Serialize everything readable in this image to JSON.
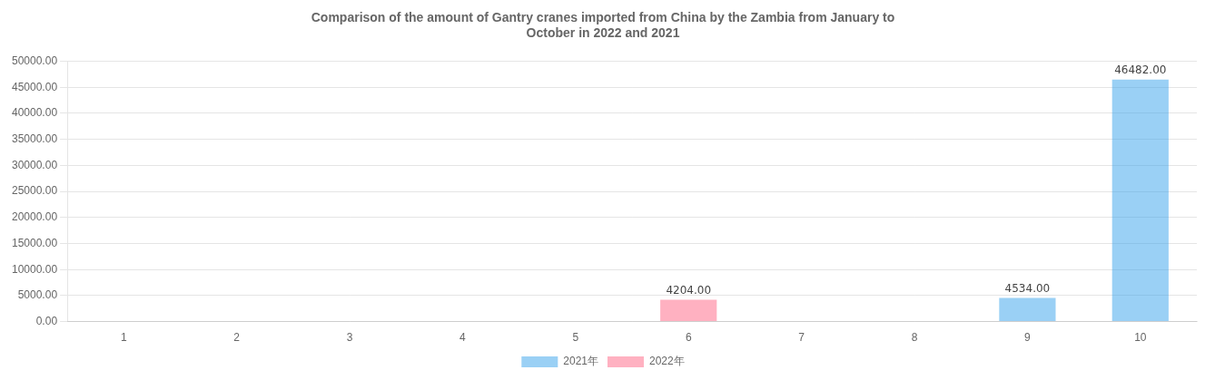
{
  "chart_data": {
    "type": "bar",
    "title": "Comparison of the amount of Gantry cranes imported from China by the Zambia from January to\nOctober in 2022 and 2021",
    "categories": [
      "1",
      "2",
      "3",
      "4",
      "5",
      "6",
      "7",
      "8",
      "9",
      "10"
    ],
    "series": [
      {
        "name": "2021年",
        "values": [
          0,
          0,
          0,
          0,
          0,
          0,
          0,
          0,
          4534,
          46482
        ]
      },
      {
        "name": "2022年",
        "values": [
          0,
          0,
          0,
          0,
          0,
          4204,
          0,
          0,
          0,
          0
        ]
      }
    ],
    "ylim": [
      0,
      50000
    ],
    "yticks": [
      {
        "value": 0,
        "label": "0.00"
      },
      {
        "value": 5000,
        "label": "5000.00"
      },
      {
        "value": 10000,
        "label": "10000.00"
      },
      {
        "value": 15000,
        "label": "15000.00"
      },
      {
        "value": 20000,
        "label": "20000.00"
      },
      {
        "value": 25000,
        "label": "25000.00"
      },
      {
        "value": 30000,
        "label": "30000.00"
      },
      {
        "value": 35000,
        "label": "35000.00"
      },
      {
        "value": 40000,
        "label": "40000.00"
      },
      {
        "value": 45000,
        "label": "45000.00"
      },
      {
        "value": 50000,
        "label": "50000.00"
      }
    ],
    "annotations": [
      {
        "x": "6",
        "y": 4204,
        "text": "4204.00"
      },
      {
        "x": "9",
        "y": 4534,
        "text": "4534.00"
      },
      {
        "x": "10",
        "y": 46482,
        "text": "46482.00"
      }
    ],
    "grid": true,
    "legend": "bottom"
  }
}
